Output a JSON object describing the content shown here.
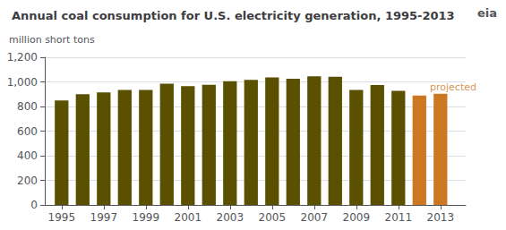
{
  "chart_data": {
    "type": "bar",
    "title": "Annual coal consumption for U.S. electricity generation, 1995-2013",
    "ylabel": "million short tons",
    "x": [
      1995,
      1996,
      1997,
      1998,
      1999,
      2000,
      2001,
      2002,
      2003,
      2004,
      2005,
      2006,
      2007,
      2008,
      2009,
      2010,
      2011,
      2012,
      2013
    ],
    "values": [
      850,
      900,
      915,
      935,
      935,
      985,
      965,
      977,
      1005,
      1016,
      1037,
      1026,
      1045,
      1042,
      934,
      975,
      928,
      890,
      903
    ],
    "colors": [
      "#5a5000",
      "#5a5000",
      "#5a5000",
      "#5a5000",
      "#5a5000",
      "#5a5000",
      "#5a5000",
      "#5a5000",
      "#5a5000",
      "#5a5000",
      "#5a5000",
      "#5a5000",
      "#5a5000",
      "#5a5000",
      "#5a5000",
      "#5a5000",
      "#5a5000",
      "#cc7722",
      "#cc7722"
    ],
    "xlim": [
      1994.2,
      2014.2
    ],
    "xticks": [
      1995,
      1997,
      1999,
      2001,
      2003,
      2005,
      2007,
      2009,
      2011,
      2013
    ],
    "ylim": [
      0,
      1200
    ],
    "yticks": [
      0,
      200,
      400,
      600,
      800,
      {
        "value": 1000,
        "label": "1,000"
      },
      {
        "value": 1200,
        "label": "1,200"
      }
    ],
    "grid": true,
    "annotations": [
      {
        "text": "projected",
        "x": 2012.5,
        "y": 920,
        "color": "#cc7722"
      },
      {
        "text": "eia"
      }
    ]
  }
}
